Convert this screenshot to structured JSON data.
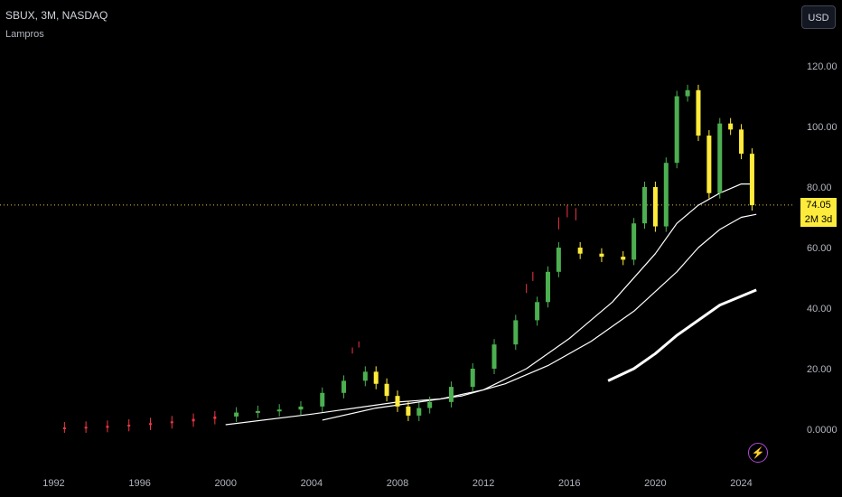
{
  "header": {
    "symbol": "SBUX, 3M, NASDAQ",
    "indicator": "Lampros",
    "currency": "USD"
  },
  "price_badge": {
    "price": "74.05",
    "countdown": "2M 3d"
  },
  "colors": {
    "bull": "#4caf50",
    "bear": "#f23645",
    "highlight": "#ffeb3b",
    "ma_line": "#ffffff",
    "dotted_price": "#e8c547",
    "background": "#000000"
  },
  "icons": {
    "alert": "lightning-icon"
  },
  "chart_data": {
    "type": "line",
    "title": "",
    "xlabel": "",
    "ylabel": "",
    "ylim": [
      -5,
      130
    ],
    "xlim": [
      1989.5,
      2026.5
    ],
    "y_ticks": [
      "0.0000",
      "20.00",
      "40.00",
      "60.00",
      "80.00",
      "100.00",
      "120.00"
    ],
    "y_tick_values": [
      0,
      20,
      40,
      60,
      80,
      100,
      120
    ],
    "x_ticks": [
      "1992",
      "1996",
      "2000",
      "2004",
      "2008",
      "2012",
      "2016",
      "2020",
      "2024"
    ],
    "x_tick_values": [
      1992,
      1996,
      2000,
      2004,
      2008,
      2012,
      2016,
      2020,
      2024
    ],
    "current_price": 74.05,
    "grid": false,
    "legend": "none",
    "price_series": {
      "name": "",
      "x": [
        1992.5,
        1993.5,
        1994.5,
        1995.5,
        1996.5,
        1997.5,
        1998.5,
        1999.5,
        2000.5,
        2001.5,
        2002.5,
        2003.5,
        2004.5,
        2005.5,
        2006.5,
        2007.0,
        2007.5,
        2008.0,
        2008.5,
        2009.0,
        2009.5,
        2010.5,
        2011.5,
        2012.5,
        2013.5,
        2014.5,
        2015.0,
        2015.5,
        2016.5,
        2017.5,
        2018.5,
        2019.0,
        2019.5,
        2020.0,
        2020.5,
        2021.0,
        2021.5,
        2022.0,
        2022.5,
        2023.0,
        2023.5,
        2024.0,
        2024.5
      ],
      "y": [
        0.6,
        0.8,
        1.1,
        1.5,
        2.0,
        2.6,
        3.4,
        4.2,
        5.5,
        6.0,
        6.5,
        7.5,
        12,
        16,
        19,
        15,
        11,
        7.5,
        4.5,
        7,
        9,
        14,
        20,
        28,
        36,
        42,
        52,
        60,
        58,
        57,
        56,
        68,
        80,
        67,
        88,
        110,
        112,
        97,
        78,
        101,
        99,
        91,
        74
      ]
    },
    "ma_fast": {
      "name": "",
      "x": [
        2000,
        2004,
        2008,
        2009,
        2010,
        2012,
        2014,
        2016,
        2018,
        2020,
        2021,
        2022,
        2023,
        2024,
        2024.5
      ],
      "y": [
        1.5,
        5,
        9,
        9.5,
        10,
        13,
        20,
        30,
        42,
        58,
        68,
        74,
        78,
        81,
        81
      ]
    },
    "ma_medium": {
      "name": "",
      "x": [
        2004.5,
        2007,
        2009,
        2011,
        2013,
        2015,
        2017,
        2019,
        2021,
        2022,
        2023,
        2024,
        2024.7
      ],
      "y": [
        3,
        7,
        9,
        11,
        15,
        21,
        29,
        39,
        52,
        60,
        66,
        70,
        71
      ]
    },
    "ma_slow": {
      "name": "",
      "x": [
        2017.8,
        2019,
        2020,
        2021,
        2022,
        2023,
        2024.7
      ],
      "y": [
        16,
        20,
        25,
        31,
        36,
        41,
        46
      ]
    },
    "candles": [
      {
        "x": 2005.9,
        "high": 27,
        "low": 25
      },
      {
        "x": 2006.2,
        "high": 29,
        "low": 27
      },
      {
        "x": 2014.0,
        "high": 48,
        "low": 45
      },
      {
        "x": 2014.3,
        "high": 52,
        "low": 49
      },
      {
        "x": 2015.5,
        "high": 70,
        "low": 66
      },
      {
        "x": 2015.9,
        "high": 74,
        "low": 70
      },
      {
        "x": 2016.3,
        "high": 73,
        "low": 69
      }
    ]
  }
}
